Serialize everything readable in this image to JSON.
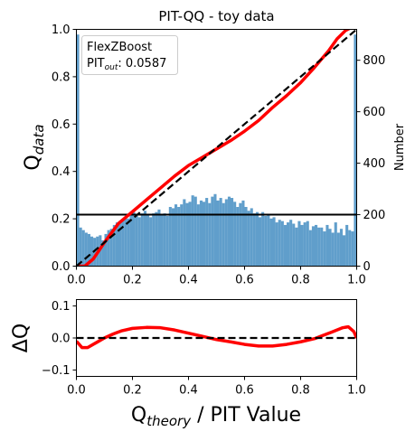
{
  "colors": {
    "hist": "#4f93c5",
    "qq_curve": "#ff0000",
    "identity": "#000000",
    "hline": "#000000",
    "legend_border": "#cccccc"
  },
  "chart_data": [
    {
      "name": "pit-qq",
      "type": "line",
      "title": "PIT-QQ - toy data",
      "ylabel": "Q_data",
      "ylabel_main": "Q",
      "ylabel_sub": "data",
      "y2label": "Number",
      "xlim": [
        0.0,
        1.0
      ],
      "ylim": [
        0.0,
        1.0
      ],
      "y2lim": [
        0,
        920
      ],
      "xticks": [
        "0.0",
        "0.2",
        "0.4",
        "0.6",
        "0.8",
        "1.0"
      ],
      "yticks": [
        "0.0",
        "0.2",
        "0.4",
        "0.6",
        "0.8",
        "1.0"
      ],
      "y2ticks": [
        "0",
        "200",
        "400",
        "600",
        "800"
      ],
      "legend": {
        "placement": "top-left",
        "line1": "FlexZBoost",
        "line2_prefix": "PIT",
        "line2_sub": "out",
        "line2_suffix": ": 0.0587"
      },
      "hline_value": 200,
      "qq_curve": {
        "x": [
          0.0,
          0.03,
          0.06,
          0.1,
          0.15,
          0.2,
          0.25,
          0.3,
          0.35,
          0.4,
          0.45,
          0.5,
          0.55,
          0.6,
          0.65,
          0.7,
          0.75,
          0.8,
          0.85,
          0.9,
          0.93,
          0.96,
          1.0
        ],
        "y": [
          0.0,
          0.0,
          0.03,
          0.1,
          0.18,
          0.23,
          0.28,
          0.33,
          0.38,
          0.425,
          0.46,
          0.495,
          0.53,
          0.57,
          0.615,
          0.67,
          0.72,
          0.775,
          0.84,
          0.91,
          0.96,
          0.995,
          1.02
        ]
      },
      "histogram": {
        "bin_start": 0.0,
        "bin_width": 0.01,
        "counts": [
          900,
          150,
          140,
          130,
          125,
          115,
          110,
          115,
          120,
          100,
          125,
          140,
          145,
          160,
          170,
          175,
          180,
          190,
          185,
          200,
          210,
          195,
          190,
          205,
          215,
          200,
          190,
          205,
          210,
          220,
          200,
          205,
          195,
          230,
          225,
          240,
          230,
          240,
          260,
          245,
          250,
          275,
          270,
          240,
          255,
          250,
          265,
          245,
          270,
          280,
          255,
          265,
          245,
          260,
          270,
          265,
          250,
          230,
          245,
          255,
          230,
          215,
          225,
          205,
          210,
          190,
          210,
          195,
          200,
          185,
          190,
          170,
          180,
          175,
          160,
          170,
          180,
          165,
          150,
          175,
          160,
          170,
          175,
          140,
          155,
          160,
          150,
          150,
          135,
          160,
          145,
          130,
          170,
          130,
          145,
          120,
          160,
          140,
          135,
          900
        ]
      }
    },
    {
      "name": "delta-q",
      "type": "line",
      "ylabel_main": "ΔQ",
      "xlabel_main": "Q",
      "xlabel_sub": "theory",
      "xlabel_suffix": " / PIT Value",
      "xlim": [
        0.0,
        1.0
      ],
      "ylim": [
        -0.12,
        0.12
      ],
      "xticks": [
        "0.0",
        "0.2",
        "0.4",
        "0.6",
        "0.8",
        "1.0"
      ],
      "yticks_values": [
        -0.1,
        0.0,
        0.1
      ],
      "yticks": [
        "−0.1",
        "0.0",
        "0.1"
      ],
      "zero_line": 0.0,
      "delta_curve": {
        "x": [
          0.0,
          0.02,
          0.04,
          0.07,
          0.1,
          0.13,
          0.16,
          0.2,
          0.25,
          0.3,
          0.35,
          0.4,
          0.45,
          0.5,
          0.55,
          0.6,
          0.65,
          0.7,
          0.75,
          0.8,
          0.85,
          0.88,
          0.91,
          0.93,
          0.95,
          0.97,
          0.99,
          1.0
        ],
        "y": [
          -0.01,
          -0.03,
          -0.03,
          -0.015,
          0.0,
          0.012,
          0.022,
          0.03,
          0.033,
          0.032,
          0.025,
          0.015,
          0.005,
          -0.005,
          -0.012,
          -0.02,
          -0.025,
          -0.025,
          -0.02,
          -0.012,
          -0.002,
          0.008,
          0.018,
          0.025,
          0.032,
          0.035,
          0.02,
          0.0
        ]
      }
    }
  ]
}
